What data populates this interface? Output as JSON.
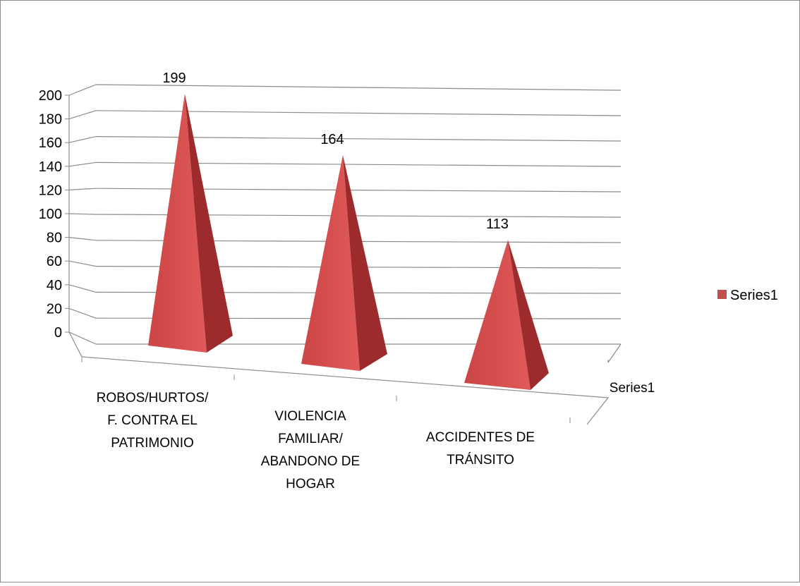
{
  "chart_data": {
    "type": "bar",
    "bar_shape": "pyramid-3d",
    "categories": [
      [
        "ROBOS/HURTOS/",
        "F. CONTRA EL",
        "PATRIMONIO"
      ],
      [
        "VIOLENCIA",
        "FAMILIAR/",
        "ABANDONO DE",
        "HOGAR"
      ],
      [
        "ACCIDENTES DE",
        "TRÁNSITO"
      ]
    ],
    "series": [
      {
        "name": "Series1",
        "values": [
          199,
          164,
          113
        ]
      }
    ],
    "data_labels": [
      "199",
      "164",
      "113"
    ],
    "depth_axis_label": "Series1",
    "ylim": [
      0,
      200
    ],
    "yticks": [
      0,
      20,
      40,
      60,
      80,
      100,
      120,
      140,
      160,
      180,
      200
    ],
    "grid": true,
    "legend": {
      "position": "right",
      "entries": [
        "Series1"
      ]
    },
    "colors": {
      "face_light": "#e05a5a",
      "face_mid": "#cc4545",
      "face_dark": "#9e2b2b",
      "legend_swatch": "#c0504d",
      "grid": "#8c8c8c",
      "frame": "#8c8c8c"
    }
  }
}
